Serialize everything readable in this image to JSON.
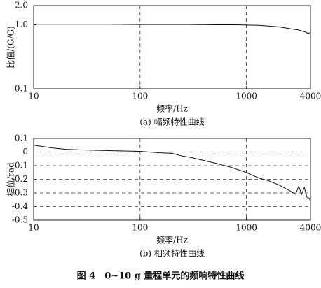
{
  "chart_data": [
    {
      "type": "line",
      "subtitle": "(a) 幅频特性曲线",
      "xlabel": "频率/Hz",
      "ylabel": "比值/(G/G)",
      "xscale": "log",
      "yscale": "log",
      "xgrid": true,
      "ygrid": false,
      "xlim": [
        10,
        4000
      ],
      "ylim": [
        0.1,
        2
      ],
      "xticks": [
        10,
        100,
        1000,
        4000
      ],
      "yticks": [
        {
          "value": 0.1,
          "label": "0.1"
        },
        {
          "value": 1,
          "label": "1.0"
        },
        {
          "value": 2,
          "label": "2.0"
        }
      ],
      "x": [
        10,
        50,
        100,
        300,
        500,
        800,
        1000,
        1300,
        1600,
        2000,
        2400,
        2800,
        3100,
        3400,
        3600,
        3800,
        4000
      ],
      "values": [
        1.02,
        1.02,
        1.01,
        1.01,
        1.0,
        1.0,
        0.99,
        0.98,
        0.96,
        0.93,
        0.89,
        0.85,
        0.83,
        0.79,
        0.77,
        0.73,
        0.76
      ],
      "color": "#111"
    },
    {
      "type": "line",
      "subtitle": "(b) 相频特性曲线",
      "xlabel": "频率/Hz",
      "ylabel": "相位/rad",
      "xscale": "log",
      "yscale": "linear",
      "xgrid": true,
      "ygrid": true,
      "xlim": [
        10,
        4000
      ],
      "ylim": [
        -0.5,
        0.1
      ],
      "xticks": [
        10,
        100,
        1000,
        4000
      ],
      "yticks": [
        0.1,
        0,
        -0.1,
        -0.2,
        -0.3,
        -0.4,
        -0.5
      ],
      "x": [
        10,
        15,
        20,
        30,
        50,
        100,
        150,
        200,
        250,
        300,
        500,
        700,
        1000,
        1300,
        1600,
        2000,
        2500,
        2900,
        3100,
        3300,
        3500,
        3700,
        3900,
        4000
      ],
      "values": [
        0.05,
        0.03,
        0.02,
        0.015,
        0.01,
        0.005,
        -0.005,
        -0.01,
        -0.03,
        -0.04,
        -0.08,
        -0.11,
        -0.15,
        -0.19,
        -0.21,
        -0.24,
        -0.28,
        -0.31,
        -0.25,
        -0.31,
        -0.26,
        -0.33,
        -0.34,
        -0.36
      ],
      "color": "#111"
    }
  ],
  "caption": "图 4　0~10 g 量程单元的频响特性曲线"
}
